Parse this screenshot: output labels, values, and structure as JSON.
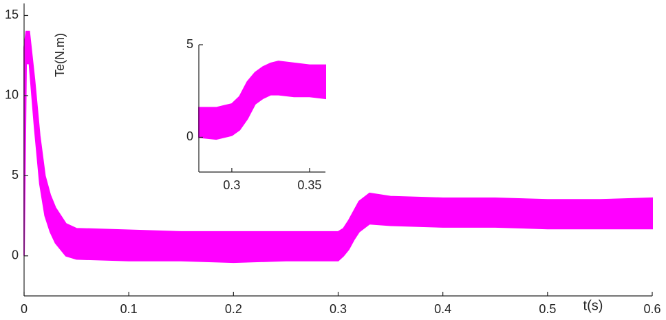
{
  "chart_data": [
    {
      "type": "band",
      "ylabel": "Te(N.m)",
      "xlabel": "t(s)",
      "color": "#ff00ff",
      "x": [
        0,
        0.002,
        0.005,
        0.01,
        0.015,
        0.02,
        0.025,
        0.03,
        0.04,
        0.05,
        0.1,
        0.15,
        0.2,
        0.25,
        0.3,
        0.305,
        0.31,
        0.315,
        0.32,
        0.33,
        0.35,
        0.4,
        0.45,
        0.5,
        0.55,
        0.6
      ],
      "upper": [
        13,
        14,
        14,
        11,
        7.5,
        5,
        3.8,
        3,
        2,
        1.7,
        1.6,
        1.5,
        1.5,
        1.5,
        1.5,
        1.7,
        2.2,
        2.8,
        3.4,
        3.9,
        3.7,
        3.6,
        3.6,
        3.5,
        3.5,
        3.6
      ],
      "lower": [
        0,
        12,
        12,
        8,
        4.5,
        2.5,
        1.5,
        0.8,
        0,
        -0.2,
        -0.3,
        -0.3,
        -0.4,
        -0.3,
        -0.3,
        0,
        0.4,
        1,
        1.5,
        2,
        1.9,
        1.8,
        1.8,
        1.7,
        1.7,
        1.7
      ],
      "xlim": [
        0,
        0.6
      ],
      "xticks": [
        0,
        0.1,
        0.2,
        0.3,
        0.4,
        0.5,
        0.6
      ],
      "ylim": [
        -2.5,
        15.75
      ],
      "yticks": [
        0,
        5,
        10,
        15
      ]
    },
    {
      "type": "band",
      "color": "#ff00ff",
      "x": [
        0.2788,
        0.29,
        0.295,
        0.3,
        0.305,
        0.31,
        0.315,
        0.32,
        0.325,
        0.33,
        0.34,
        0.35,
        0.3602
      ],
      "upper": [
        1.6,
        1.6,
        1.7,
        1.8,
        2.2,
        3,
        3.5,
        3.8,
        4,
        4.1,
        4,
        3.9,
        3.9
      ],
      "lower": [
        0,
        -0.1,
        0,
        0.1,
        0.4,
        1,
        1.8,
        2.1,
        2.3,
        2.3,
        2.2,
        2.2,
        2.1
      ],
      "xlim": [
        0.2788,
        0.3602
      ],
      "xticks": [
        0.3,
        0.35
      ],
      "ylim": [
        -1.88,
        5
      ],
      "yticks": [
        0,
        5
      ]
    }
  ]
}
